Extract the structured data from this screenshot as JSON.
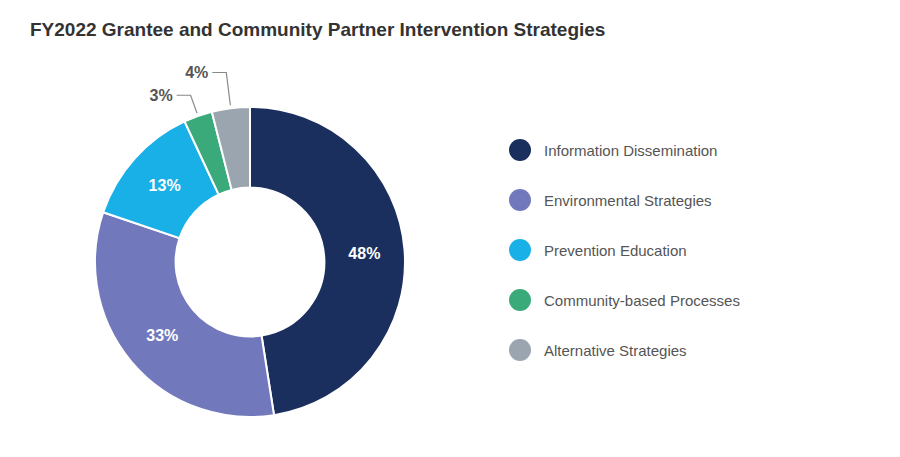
{
  "chart_data": {
    "type": "pie",
    "title": "FY2022 Grantee and Community Partner Intervention Strategies",
    "categories": [
      "Information Dissemination",
      "Environmental Strategies",
      "Prevention Education",
      "Community-based Processes",
      "Alternative Strategies"
    ],
    "values": [
      48,
      33,
      13,
      3,
      4
    ],
    "value_labels": [
      "48%",
      "33%",
      "13%",
      "3%",
      "4%"
    ],
    "colors": [
      "#1b2f5e",
      "#7179bc",
      "#19b0e8",
      "#3aaa7a",
      "#9aa5b0"
    ],
    "data_labels": true,
    "legend": "right"
  }
}
